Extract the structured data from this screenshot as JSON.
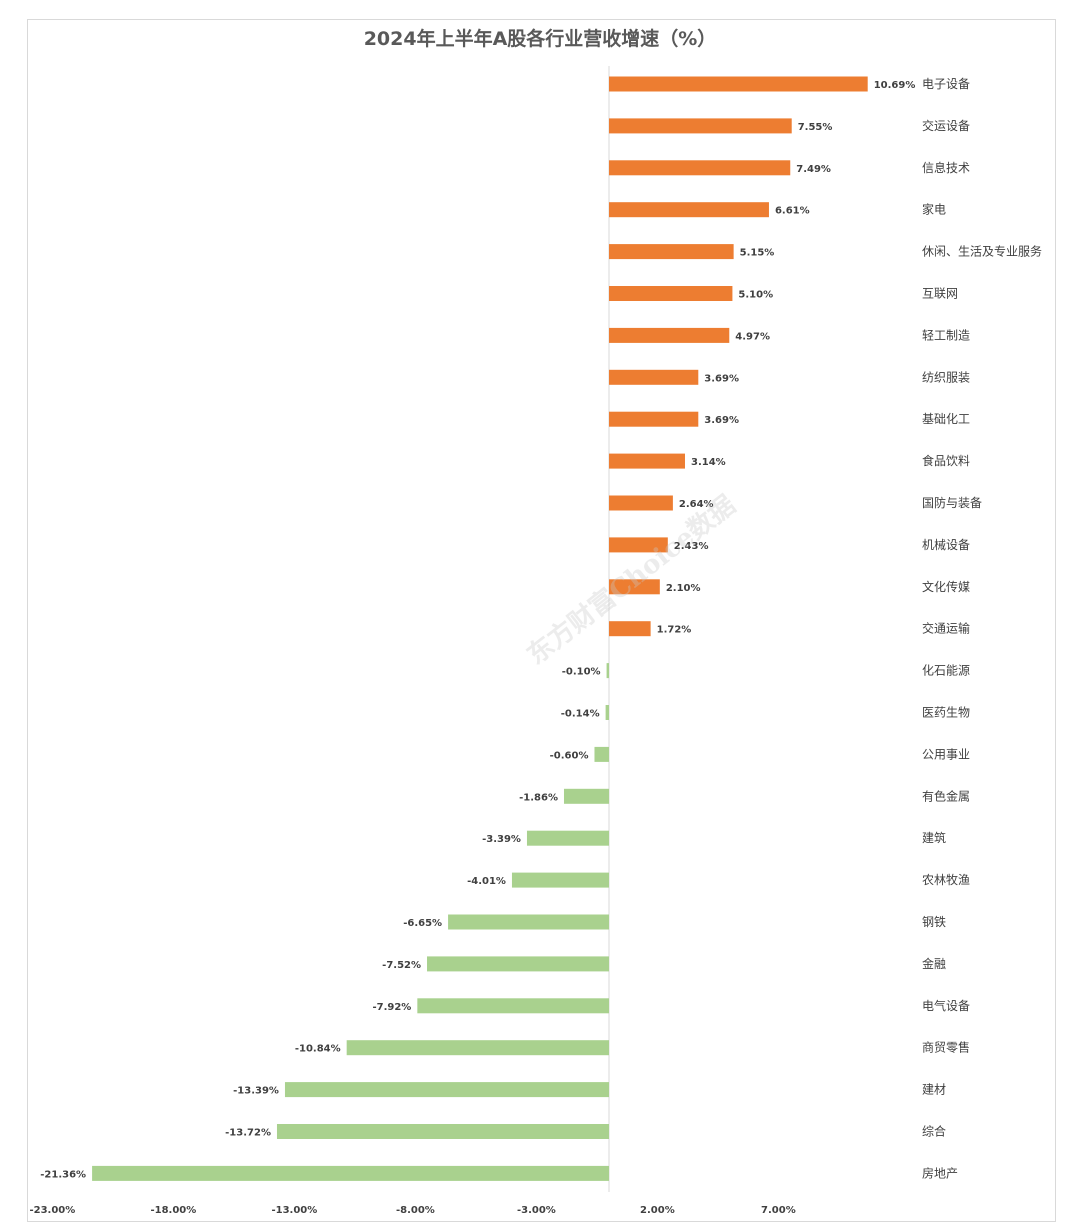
{
  "chart_data": {
    "type": "bar",
    "orientation": "horizontal",
    "title": "2024年上半年A股各行业营收增速（%）",
    "categories": [
      "电子设备",
      "交运设备",
      "信息技术",
      "家电",
      "休闲、生活及专业服务",
      "互联网",
      "轻工制造",
      "纺织服装",
      "基础化工",
      "食品饮料",
      "国防与装备",
      "机械设备",
      "文化传媒",
      "交通运输",
      "化石能源",
      "医药生物",
      "公用事业",
      "有色金属",
      "建筑",
      "农林牧渔",
      "钢铁",
      "金融",
      "电气设备",
      "商贸零售",
      "建材",
      "综合",
      "房地产"
    ],
    "values": [
      10.69,
      7.55,
      7.49,
      6.61,
      5.15,
      5.1,
      4.97,
      3.69,
      3.69,
      3.14,
      2.64,
      2.43,
      2.1,
      1.72,
      -0.1,
      -0.14,
      -0.6,
      -1.86,
      -3.39,
      -4.01,
      -6.65,
      -7.52,
      -7.92,
      -10.84,
      -13.39,
      -13.72,
      -21.36
    ],
    "value_labels": [
      "10.69%",
      "7.55%",
      "7.49%",
      "6.61%",
      "5.15%",
      "5.10%",
      "4.97%",
      "3.69%",
      "3.69%",
      "3.14%",
      "2.64%",
      "2.43%",
      "2.10%",
      "1.72%",
      "-0.10%",
      "-0.14%",
      "-0.60%",
      "-1.86%",
      "-3.39%",
      "-4.01%",
      "-6.65%",
      "-7.52%",
      "-7.92%",
      "-10.84%",
      "-13.39%",
      "-13.72%",
      "-21.36%"
    ],
    "x_ticks": [
      -23,
      -18,
      -13,
      -8,
      -3,
      2,
      7
    ],
    "x_tick_labels": [
      "-23.00%",
      "-18.00%",
      "-13.00%",
      "-8.00%",
      "-3.00%",
      "2.00%",
      "7.00%"
    ],
    "xlim": [
      -23,
      12
    ],
    "colors": {
      "positive": "#ED7D31",
      "negative": "#A9D18E"
    },
    "legend": "none",
    "grid": false
  },
  "watermark": "东方财富Choice数据"
}
